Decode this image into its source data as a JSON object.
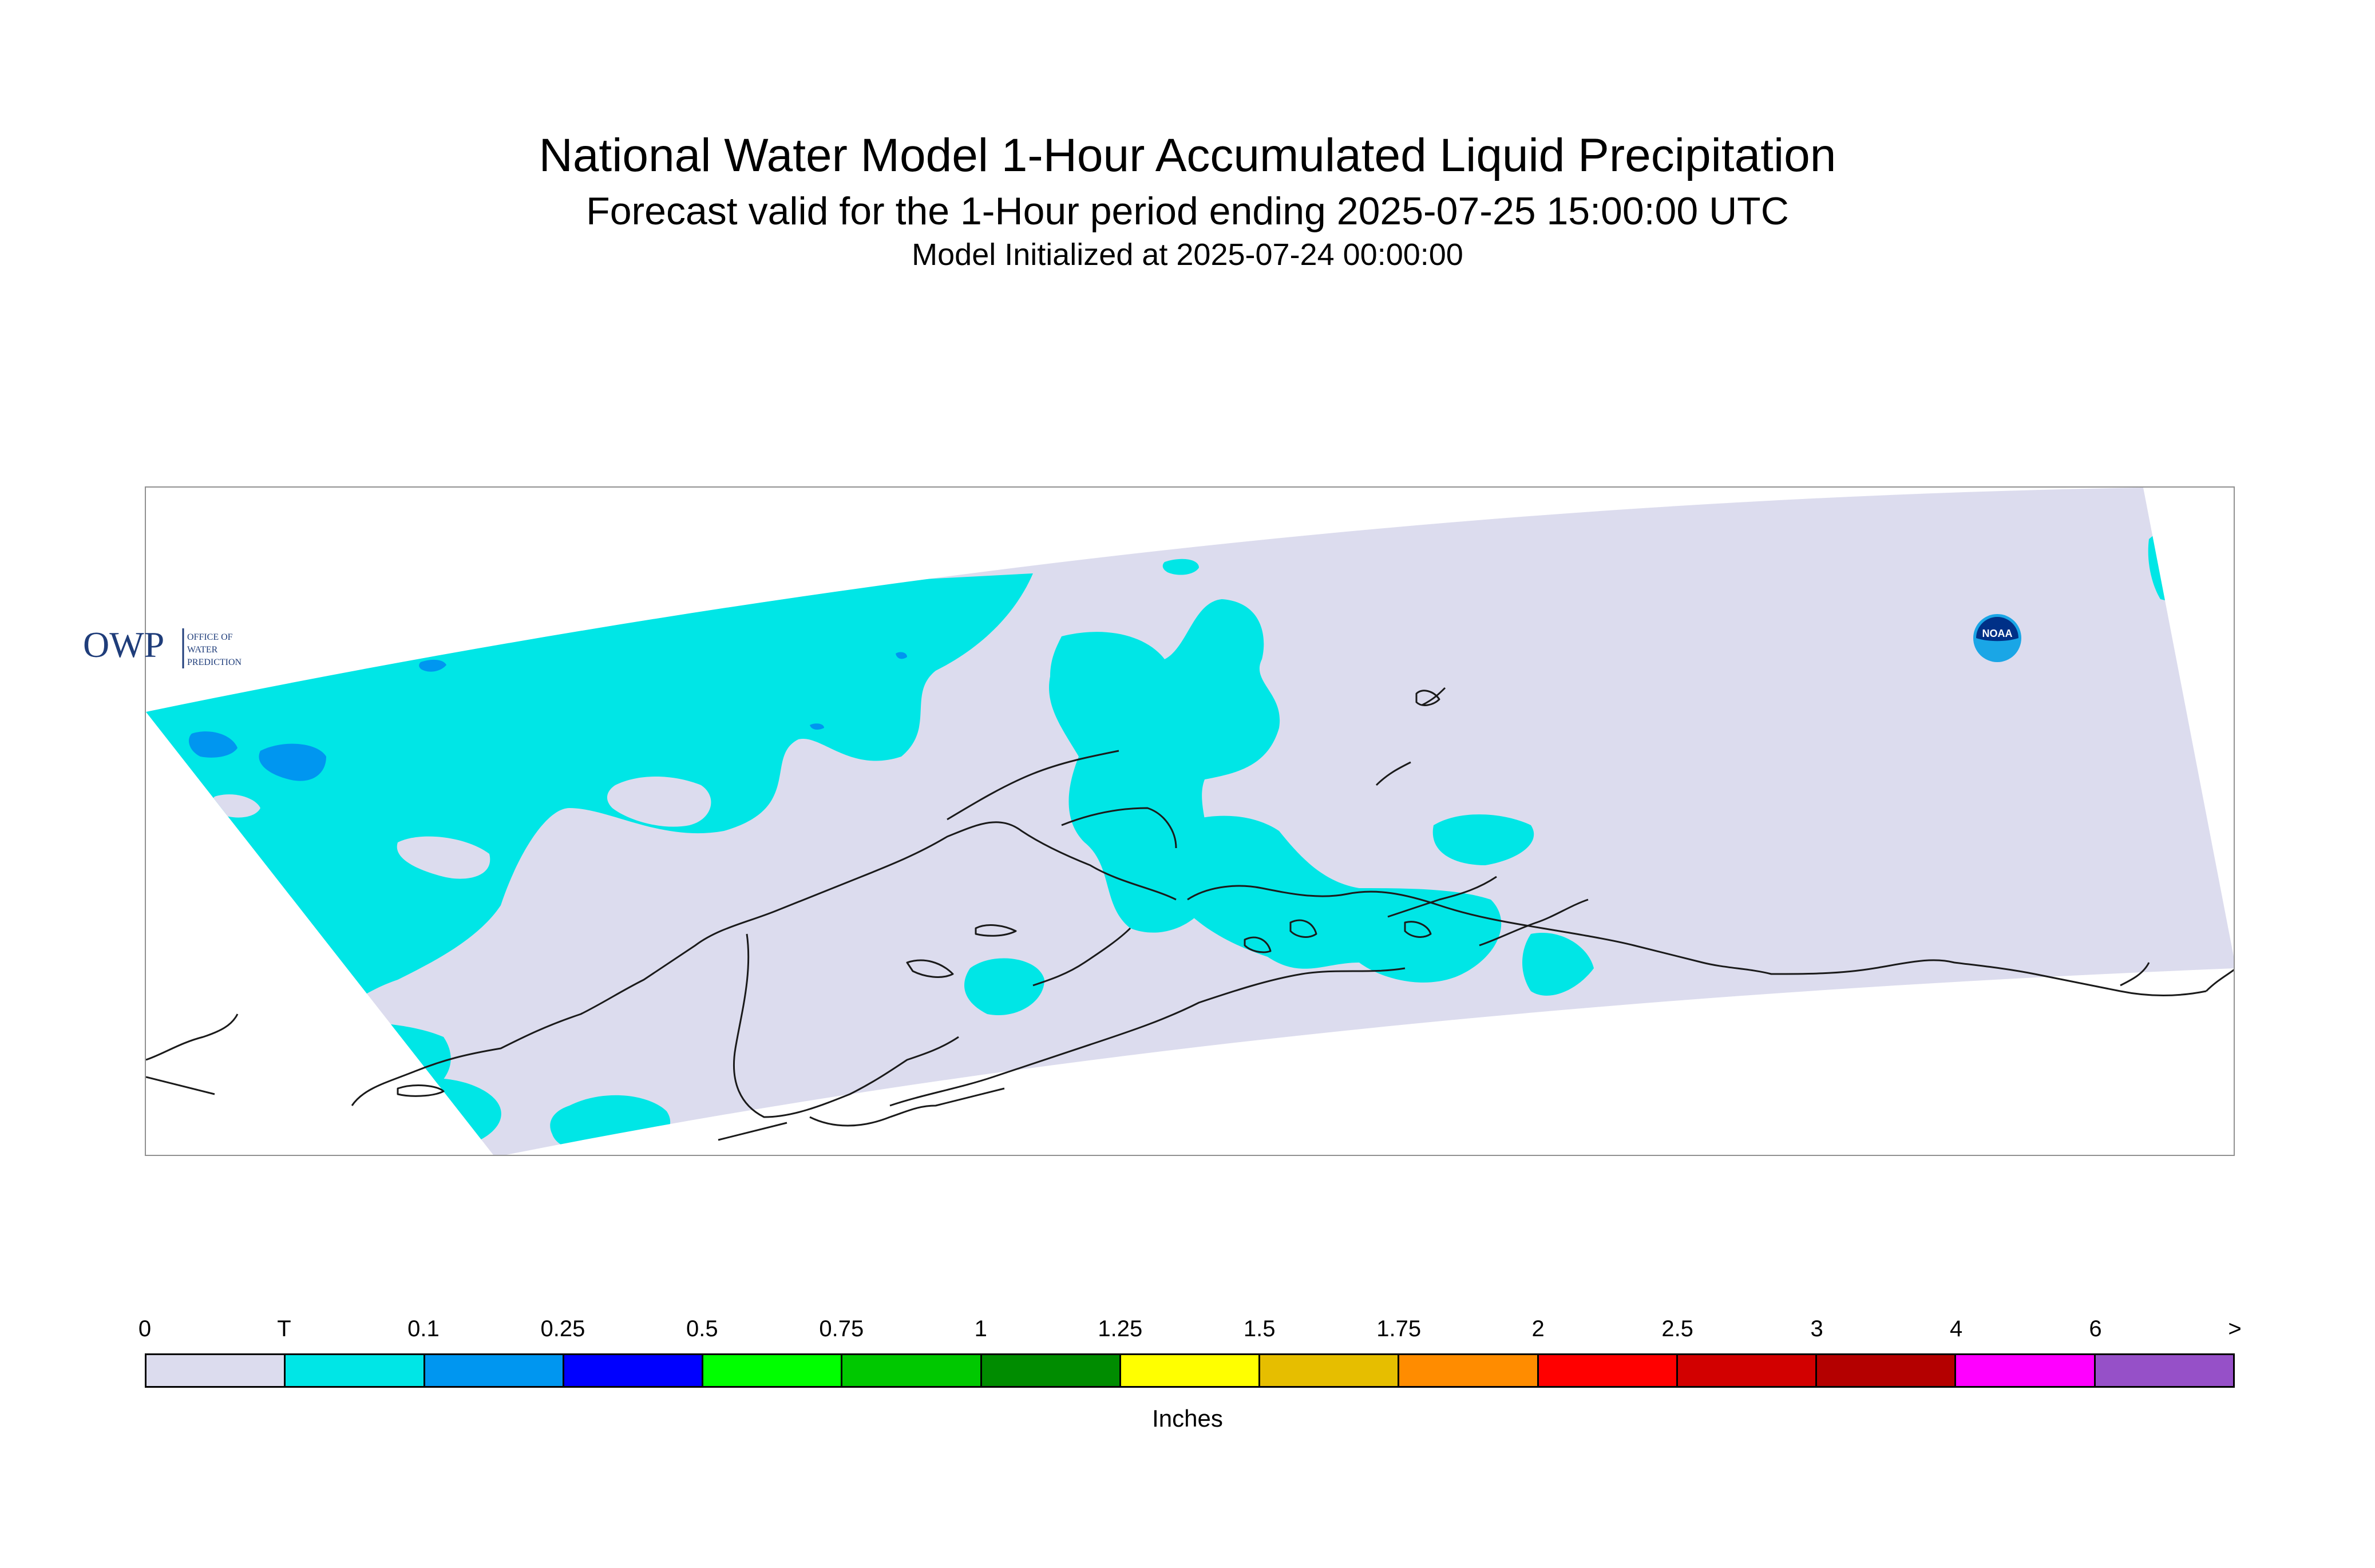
{
  "title": {
    "main": "National Water Model 1-Hour Accumulated Liquid Precipitation",
    "subtitle": "Forecast valid for the 1-Hour period ending 2025-07-25 15:00:00 UTC",
    "initialized": "Model Initialized at 2025-07-24 00:00:00"
  },
  "map": {
    "region_fill": "#dcdcee",
    "coastline_color": "#1a1a1a",
    "frame_color": "#909090",
    "precip_colors": {
      "T": "#00e6e6",
      "0.1": "#0096f0"
    }
  },
  "logos": {
    "owp": {
      "mark": "OWP",
      "text_lines": [
        "OFFICE OF",
        "WATER",
        "PREDICTION"
      ],
      "color": "#1f3d7a"
    },
    "noaa": {
      "mark": "NOAA",
      "outer": "#1aa6e6",
      "inner": "#003087"
    }
  },
  "legend": {
    "tick_labels": [
      "0",
      "T",
      "0.1",
      "0.25",
      "0.5",
      "0.75",
      "1",
      "1.25",
      "1.5",
      "1.75",
      "2",
      "2.5",
      "3",
      "4",
      "6",
      ">"
    ],
    "colors": [
      "#dcdcee",
      "#00e6e6",
      "#0096f0",
      "#0000ff",
      "#00ff00",
      "#00c800",
      "#008c00",
      "#ffff00",
      "#e6be00",
      "#ff8c00",
      "#ff0000",
      "#d20000",
      "#b40000",
      "#ff00ff",
      "#9650c8"
    ],
    "units": "Inches"
  }
}
